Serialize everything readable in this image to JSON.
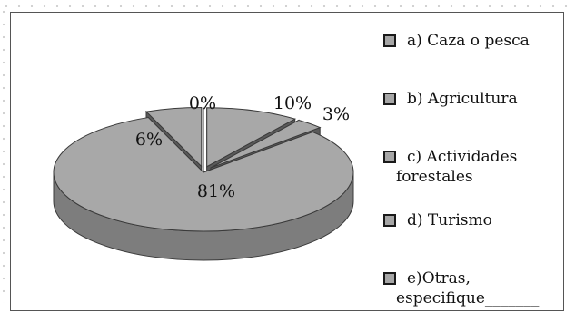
{
  "chart_data": {
    "type": "pie",
    "style": "3d-exploded",
    "categories": [
      "a) Caza o pesca",
      "b) Agricultura",
      "c) Actividades forestales",
      "d) Turismo",
      "e)Otras, especifique_______"
    ],
    "values": [
      10,
      3,
      81,
      6,
      0
    ],
    "data_labels": [
      "10%",
      "3%",
      "81%",
      "6%",
      "0%"
    ],
    "legend_position": "right",
    "colors": {
      "slice_top": "#a8a8a8",
      "slice_side": "#7d7d7d",
      "slice_edge": "#3a3a3a",
      "legend_swatch": "#a6a6a6"
    }
  },
  "legend": {
    "items": [
      {
        "label": "a) Caza o pesca"
      },
      {
        "label": "b) Agricultura"
      },
      {
        "label": "c) Actividades",
        "label2": "forestales"
      },
      {
        "label": "d) Turismo"
      },
      {
        "label": "e)Otras,",
        "label2": "especifique_______"
      }
    ]
  }
}
